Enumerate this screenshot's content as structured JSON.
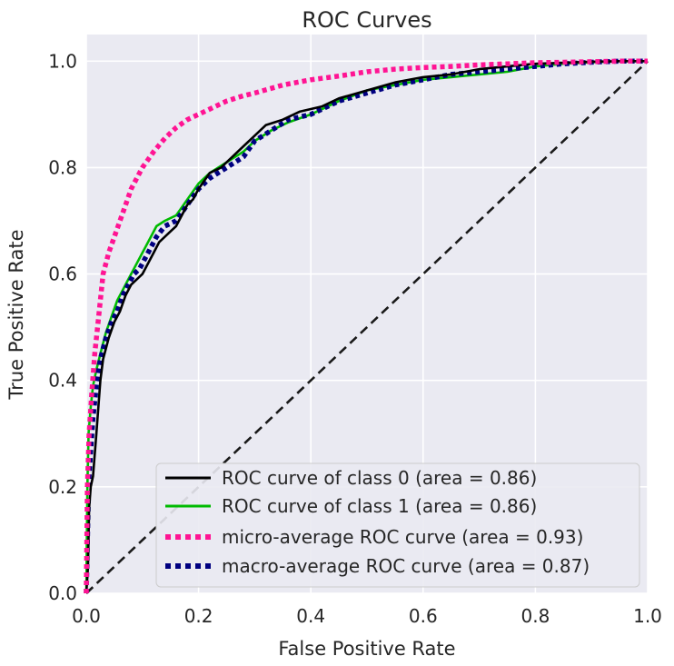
{
  "chart_data": {
    "type": "line",
    "title": "ROC Curves",
    "xlabel": "False Positive Rate",
    "ylabel": "True Positive Rate",
    "xlim": [
      0.0,
      1.0
    ],
    "ylim": [
      0.0,
      1.05
    ],
    "xticks": [
      "0.0",
      "0.2",
      "0.4",
      "0.6",
      "0.8",
      "1.0"
    ],
    "yticks": [
      "0.0",
      "0.2",
      "0.4",
      "0.6",
      "0.8",
      "1.0"
    ],
    "grid": true,
    "legend_position": "lower right",
    "series": [
      {
        "name": "ROC curve of class 0 (area = 0.86)",
        "color": "#000000",
        "style": "solid",
        "x": [
          0.0,
          0.003,
          0.005,
          0.008,
          0.012,
          0.018,
          0.025,
          0.03,
          0.04,
          0.05,
          0.06,
          0.07,
          0.08,
          0.09,
          0.1,
          0.11,
          0.12,
          0.13,
          0.14,
          0.15,
          0.16,
          0.17,
          0.18,
          0.19,
          0.2,
          0.22,
          0.24,
          0.26,
          0.28,
          0.3,
          0.32,
          0.35,
          0.38,
          0.4,
          0.42,
          0.45,
          0.5,
          0.55,
          0.6,
          0.65,
          0.7,
          0.75,
          0.8,
          0.85,
          0.9,
          0.95,
          1.0
        ],
        "y": [
          0.0,
          0.05,
          0.16,
          0.2,
          0.22,
          0.3,
          0.4,
          0.44,
          0.48,
          0.51,
          0.53,
          0.56,
          0.58,
          0.59,
          0.6,
          0.62,
          0.64,
          0.66,
          0.67,
          0.68,
          0.69,
          0.71,
          0.73,
          0.74,
          0.76,
          0.79,
          0.8,
          0.82,
          0.84,
          0.86,
          0.88,
          0.89,
          0.905,
          0.91,
          0.915,
          0.93,
          0.945,
          0.96,
          0.97,
          0.975,
          0.985,
          0.99,
          0.995,
          0.997,
          0.999,
          1.0,
          1.0
        ]
      },
      {
        "name": "ROC curve of class 1 (area = 0.86)",
        "color": "#00bb00",
        "style": "solid",
        "x": [
          0.0,
          0.002,
          0.004,
          0.008,
          0.012,
          0.018,
          0.025,
          0.035,
          0.045,
          0.055,
          0.065,
          0.075,
          0.085,
          0.095,
          0.105,
          0.115,
          0.125,
          0.14,
          0.16,
          0.18,
          0.2,
          0.22,
          0.25,
          0.28,
          0.3,
          0.33,
          0.36,
          0.4,
          0.45,
          0.5,
          0.55,
          0.6,
          0.65,
          0.7,
          0.75,
          0.8,
          0.85,
          0.9,
          0.95,
          1.0
        ],
        "y": [
          0.0,
          0.2,
          0.3,
          0.35,
          0.39,
          0.42,
          0.45,
          0.49,
          0.52,
          0.55,
          0.57,
          0.59,
          0.61,
          0.63,
          0.65,
          0.67,
          0.69,
          0.7,
          0.71,
          0.74,
          0.77,
          0.79,
          0.81,
          0.83,
          0.85,
          0.87,
          0.885,
          0.9,
          0.925,
          0.945,
          0.955,
          0.965,
          0.97,
          0.975,
          0.98,
          0.99,
          0.995,
          0.998,
          1.0,
          1.0
        ]
      },
      {
        "name": "micro-average ROC curve (area = 0.93)",
        "color": "#ff1493",
        "style": "dotted",
        "x": [
          0.0,
          0.002,
          0.005,
          0.01,
          0.015,
          0.02,
          0.03,
          0.04,
          0.05,
          0.06,
          0.07,
          0.08,
          0.09,
          0.1,
          0.12,
          0.14,
          0.16,
          0.18,
          0.2,
          0.22,
          0.25,
          0.28,
          0.3,
          0.35,
          0.4,
          0.45,
          0.5,
          0.55,
          0.6,
          0.65,
          0.7,
          0.75,
          0.8,
          0.85,
          0.9,
          0.95,
          1.0
        ],
        "y": [
          0.0,
          0.2,
          0.3,
          0.38,
          0.45,
          0.5,
          0.6,
          0.64,
          0.67,
          0.7,
          0.73,
          0.76,
          0.78,
          0.8,
          0.83,
          0.855,
          0.875,
          0.89,
          0.9,
          0.91,
          0.925,
          0.935,
          0.94,
          0.955,
          0.965,
          0.972,
          0.98,
          0.985,
          0.988,
          0.99,
          0.993,
          0.995,
          0.997,
          0.998,
          0.999,
          1.0,
          1.0
        ]
      },
      {
        "name": "macro-average ROC curve (area = 0.87)",
        "color": "#000080",
        "style": "dotted",
        "x": [
          0.0,
          0.003,
          0.005,
          0.008,
          0.012,
          0.018,
          0.025,
          0.035,
          0.045,
          0.055,
          0.065,
          0.075,
          0.085,
          0.095,
          0.105,
          0.115,
          0.125,
          0.14,
          0.16,
          0.18,
          0.2,
          0.22,
          0.25,
          0.28,
          0.3,
          0.33,
          0.36,
          0.4,
          0.45,
          0.5,
          0.55,
          0.6,
          0.65,
          0.7,
          0.75,
          0.8,
          0.85,
          0.9,
          0.95,
          1.0
        ],
        "y": [
          0.0,
          0.15,
          0.22,
          0.27,
          0.33,
          0.39,
          0.44,
          0.48,
          0.51,
          0.53,
          0.56,
          0.58,
          0.6,
          0.61,
          0.63,
          0.65,
          0.67,
          0.69,
          0.7,
          0.73,
          0.76,
          0.78,
          0.8,
          0.82,
          0.85,
          0.87,
          0.89,
          0.9,
          0.925,
          0.94,
          0.955,
          0.965,
          0.975,
          0.98,
          0.985,
          0.99,
          0.995,
          0.998,
          1.0,
          1.0
        ]
      }
    ],
    "diagonal": {
      "color": "#1a1a1a",
      "style": "dashed",
      "x": [
        0,
        1
      ],
      "y": [
        0,
        1
      ]
    }
  }
}
